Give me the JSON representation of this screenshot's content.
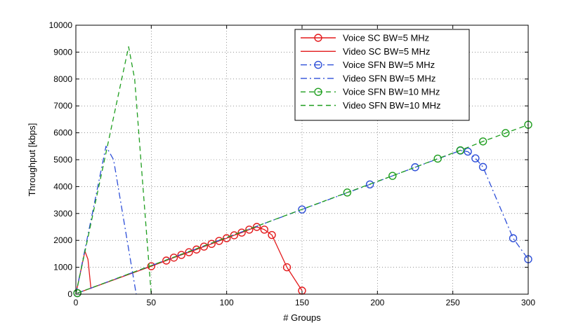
{
  "chart_data": {
    "type": "line",
    "title": "",
    "xlabel": "# Groups",
    "ylabel": "Throughput [kbps]",
    "xlim": [
      0,
      300
    ],
    "ylim": [
      0,
      10000
    ],
    "xticks": [
      0,
      50,
      100,
      150,
      200,
      250,
      300
    ],
    "yticks": [
      0,
      1000,
      2000,
      3000,
      4000,
      5000,
      6000,
      7000,
      8000,
      9000,
      10000
    ],
    "grid": true,
    "legend_position": "top-right",
    "series": [
      {
        "name": "Voice SC BW=5 MHz",
        "color": "#e31a1c",
        "line": "solid",
        "marker": "circle",
        "x": [
          1,
          50,
          60,
          65,
          70,
          75,
          80,
          85,
          90,
          95,
          100,
          105,
          110,
          115,
          120,
          125,
          130,
          140,
          150
        ],
        "y": [
          40,
          1040,
          1250,
          1360,
          1460,
          1560,
          1660,
          1770,
          1870,
          1980,
          2080,
          2190,
          2290,
          2400,
          2500,
          2400,
          2200,
          1000,
          130
        ]
      },
      {
        "name": "Video SC BW=5 MHz",
        "color": "#e31a1c",
        "line": "solid",
        "marker": "none",
        "x": [
          0,
          6,
          8,
          10
        ],
        "y": [
          0,
          1600,
          1300,
          200
        ]
      },
      {
        "name": "Voice SFN BW=5 MHz",
        "color": "#2e4fd8",
        "line": "dashdot",
        "marker": "circle",
        "x": [
          1,
          150,
          195,
          225,
          255,
          260,
          265,
          270,
          290,
          300
        ],
        "y": [
          40,
          3150,
          4080,
          4720,
          5340,
          5300,
          5050,
          4730,
          2080,
          1300
        ]
      },
      {
        "name": "Video SFN BW=5 MHz",
        "color": "#2e4fd8",
        "line": "dashdot",
        "marker": "none",
        "x": [
          0,
          20,
          25,
          40
        ],
        "y": [
          0,
          5500,
          5000,
          0
        ]
      },
      {
        "name": "Voice SFN BW=10 MHz",
        "color": "#1e9e1e",
        "line": "dashed",
        "marker": "circle",
        "x": [
          1,
          180,
          210,
          240,
          255,
          270,
          285,
          300
        ],
        "y": [
          40,
          3780,
          4400,
          5040,
          5350,
          5680,
          5990,
          6300
        ]
      },
      {
        "name": "Video SFN BW=10 MHz",
        "color": "#1e9e1e",
        "line": "dashed",
        "marker": "none",
        "x": [
          0,
          35,
          39,
          50
        ],
        "y": [
          0,
          9200,
          8000,
          0
        ]
      }
    ]
  }
}
